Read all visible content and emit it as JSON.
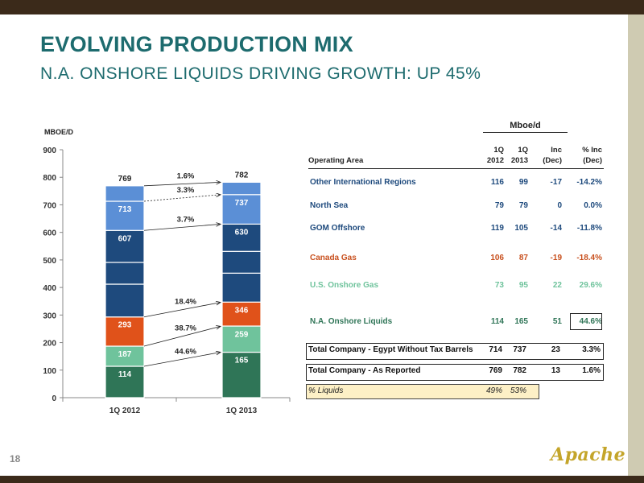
{
  "header": {
    "title": "EVOLVING PRODUCTION MIX",
    "subtitle": "N.A. ONSHORE LIQUIDS DRIVING GROWTH: UP 45%"
  },
  "page_number": "18",
  "logo_text": "Apache",
  "colors": {
    "teal_title": "#1d6b6e",
    "dark_green": "#2f7557",
    "light_teal": "#6fc39c",
    "orange": "#e0521a",
    "navy": "#1e4a7d",
    "light_blue": "#5b8fd6",
    "red_text": "#c8501e"
  },
  "chart_data": {
    "type": "bar",
    "stacked": true,
    "ylabel": "MBOE/D",
    "ylim": [
      0,
      900
    ],
    "yticks": [
      0,
      100,
      200,
      300,
      400,
      500,
      600,
      700,
      800,
      900
    ],
    "categories": [
      "1Q 2012",
      "1Q 2013"
    ],
    "series": [
      {
        "values": [
          114,
          165
        ],
        "color": "#2f7557"
      },
      {
        "values": [
          73,
          95
        ],
        "color": "#6fc39c"
      },
      {
        "values": [
          106,
          87
        ],
        "color": "#e0521a"
      },
      {
        "values": [
          119,
          105
        ],
        "color": "#1e4a7d"
      },
      {
        "values": [
          79,
          79
        ],
        "color": "#1e4a7d"
      },
      {
        "values": [
          116,
          99
        ],
        "color": "#1e4a7d"
      },
      {
        "values": [
          106,
          107
        ],
        "color": "#5b8fd6"
      },
      {
        "values": [
          56,
          45
        ],
        "color": "#5b8fd6"
      }
    ],
    "cumulative_labels": {
      "1Q 2012": [
        {
          "value": 114,
          "text": "114"
        },
        {
          "value": 187,
          "text": "187"
        },
        {
          "value": 293,
          "text": "293"
        },
        {
          "value": 607,
          "text": "607"
        },
        {
          "value": 713,
          "text": "713"
        }
      ],
      "1Q 2013": [
        {
          "value": 165,
          "text": "165"
        },
        {
          "value": 259,
          "text": "259"
        },
        {
          "value": 346,
          "text": "346"
        },
        {
          "value": 630,
          "text": "630"
        },
        {
          "value": 737,
          "text": "737"
        }
      ]
    },
    "totals": [
      "769",
      "782"
    ],
    "growth_annotations": [
      {
        "from": 114,
        "to": 165,
        "text": "44.6%"
      },
      {
        "from": 187,
        "to": 259,
        "text": "38.7%"
      },
      {
        "from": 293,
        "to": 346,
        "text": "18.4%"
      },
      {
        "from": 607,
        "to": 630,
        "text": "3.7%"
      },
      {
        "from": 713,
        "to": 737,
        "text": "3.3%"
      },
      {
        "from": 769,
        "to": 782,
        "text": "1.6%"
      }
    ]
  },
  "table": {
    "group_header": "Mboe/d",
    "columns": [
      {
        "line1": "",
        "line2": "Operating Area"
      },
      {
        "line1": "1Q",
        "line2": "2012"
      },
      {
        "line1": "1Q",
        "line2": "2013"
      },
      {
        "line1": "Inc",
        "line2": "(Dec)"
      },
      {
        "line1": "% Inc",
        "line2": "(Dec)"
      }
    ],
    "rows": [
      {
        "area": "Other International Regions",
        "v2012": "116",
        "v2013": "99",
        "inc": "-17",
        "pct": "-14.2%",
        "color": "#1e4a7d"
      },
      {
        "area": "North Sea",
        "v2012": "79",
        "v2013": "79",
        "inc": "0",
        "pct": "0.0%",
        "color": "#1e4a7d"
      },
      {
        "area": "GOM Offshore",
        "v2012": "119",
        "v2013": "105",
        "inc": "-14",
        "pct": "-11.8%",
        "color": "#1e4a7d"
      },
      {
        "area": "Canada Gas",
        "v2012": "106",
        "v2013": "87",
        "inc": "-19",
        "pct": "-18.4%",
        "color": "#c8501e"
      },
      {
        "area": "U.S. Onshore Gas",
        "v2012": "73",
        "v2013": "95",
        "inc": "22",
        "pct": "29.6%",
        "color": "#6fc39c"
      },
      {
        "area": "N.A. Onshore Liquids",
        "v2012": "114",
        "v2013": "165",
        "inc": "51",
        "pct": "44.6%",
        "color": "#2f7557"
      }
    ],
    "totals": [
      {
        "area": "Total Company - Egypt Without Tax Barrels",
        "v2012": "714",
        "v2013": "737",
        "inc": "23",
        "pct": "3.3%"
      },
      {
        "area": "Total Company - As Reported",
        "v2012": "769",
        "v2013": "782",
        "inc": "13",
        "pct": "1.6%"
      }
    ],
    "liquids": {
      "area": "% Liquids",
      "v2012": "49%",
      "v2013": "53%"
    }
  }
}
